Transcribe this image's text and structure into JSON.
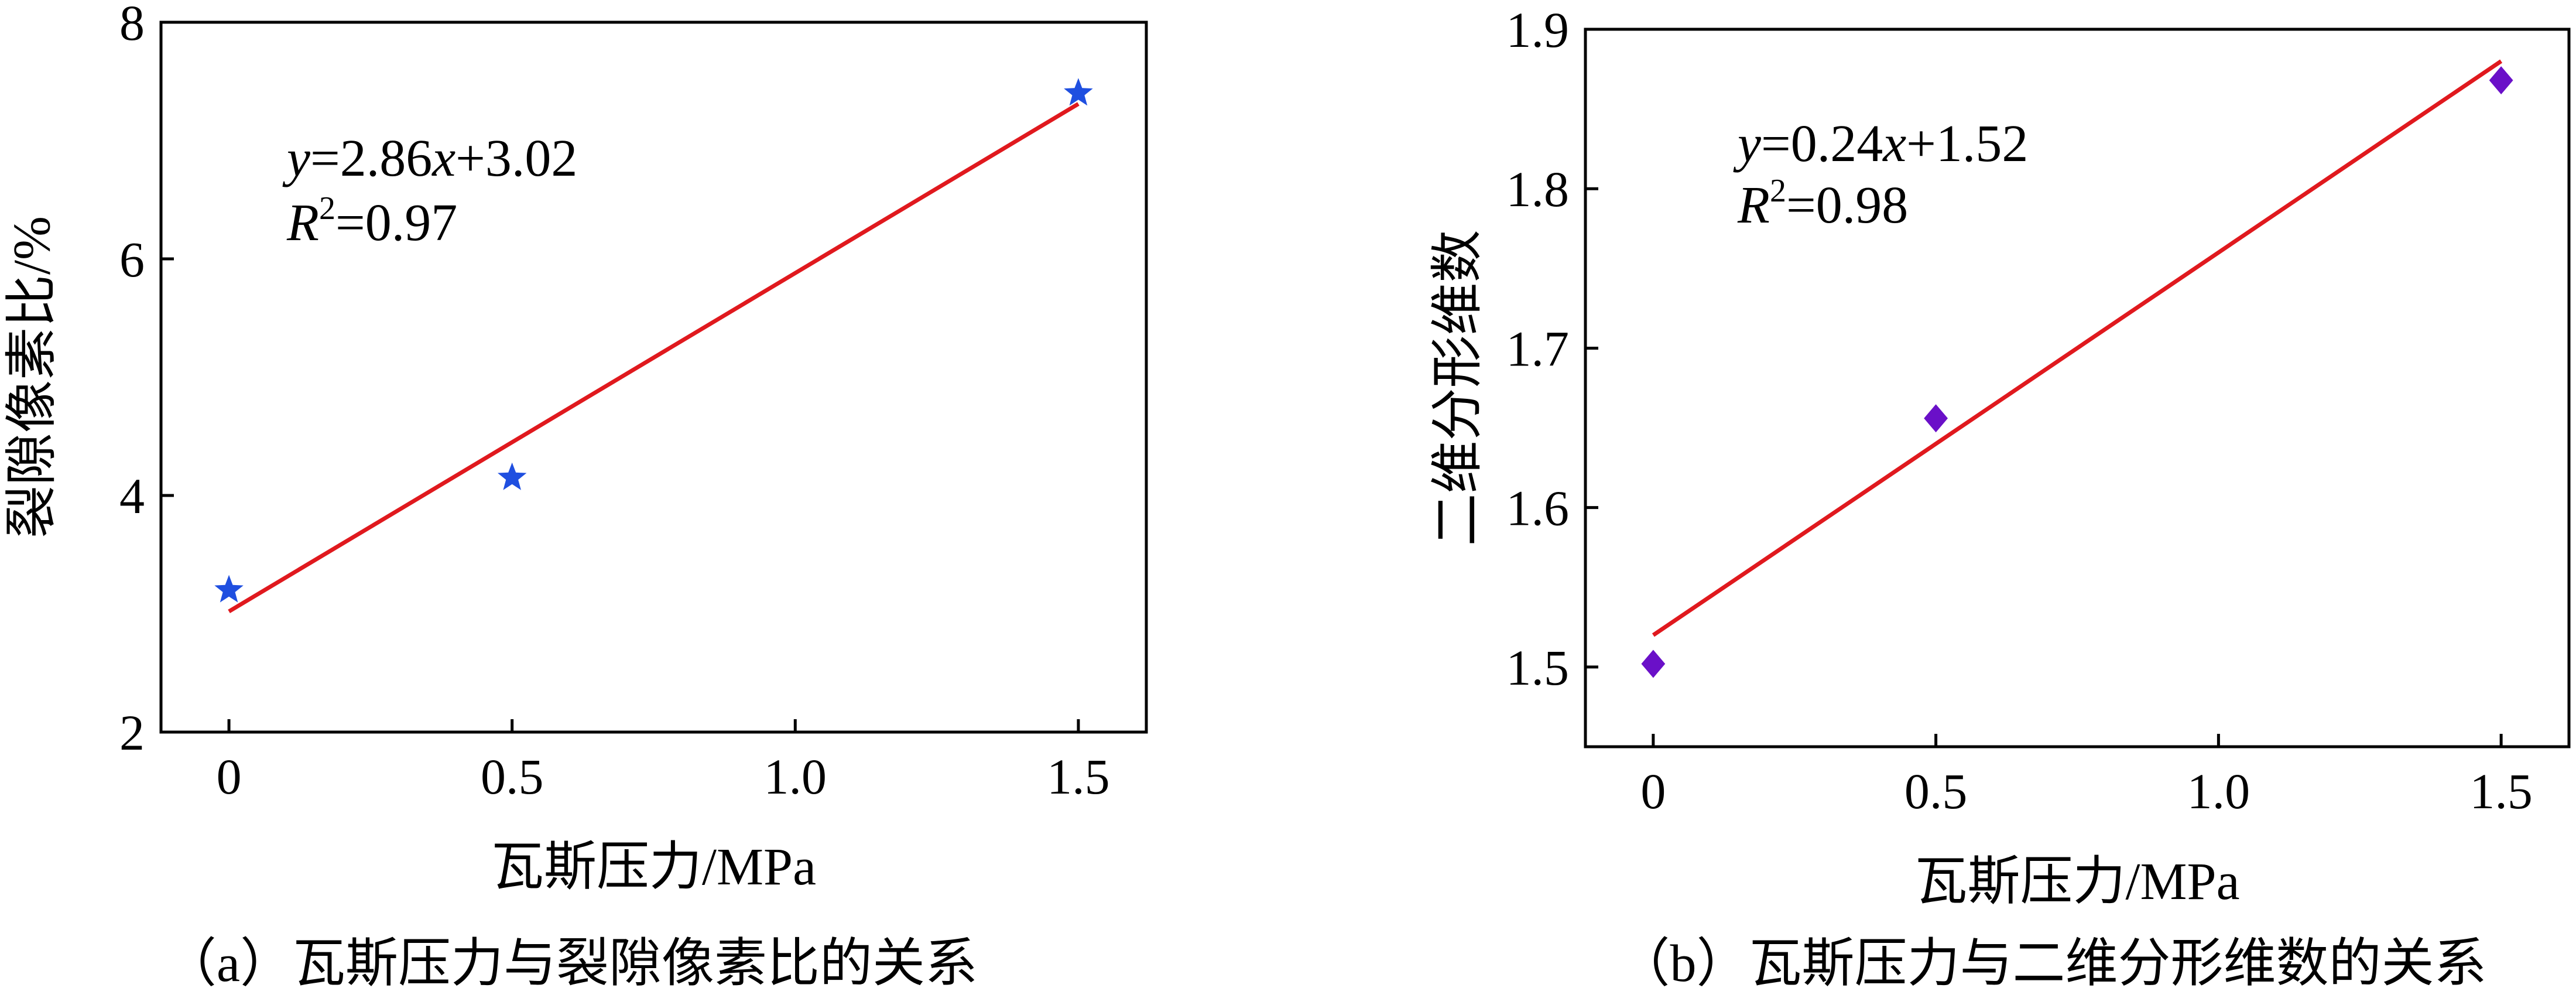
{
  "figure": {
    "captions": [
      "（a）瓦斯压力与裂隙像素比的关系",
      "（b）瓦斯压力与二维分形维数的关系"
    ]
  },
  "chart_data": [
    {
      "type": "scatter",
      "panel_label": "(a)",
      "caption": "（a）瓦斯压力与裂隙像素比的关系",
      "xlabel": "瓦斯压力/MPa",
      "ylabel": "裂隙像素比/%",
      "xlim": [
        -0.12,
        1.62
      ],
      "ylim": [
        2,
        8
      ],
      "xticks": [
        0,
        0.5,
        1.0,
        1.5
      ],
      "xtick_labels": [
        "0",
        "0.5",
        "1.0",
        "1.5"
      ],
      "yticks": [
        2,
        4,
        6,
        8
      ],
      "ytick_labels": [
        "2",
        "4",
        "6",
        "8"
      ],
      "series": [
        {
          "marker": "star",
          "color": "#1f4fe0",
          "x": [
            0,
            0.5,
            1.5
          ],
          "y": [
            3.2,
            4.15,
            7.4
          ]
        }
      ],
      "fit": {
        "color": "#e0191e",
        "slope": 2.86,
        "intercept": 3.02,
        "x_range": [
          0,
          1.5
        ],
        "equation": {
          "y": "y",
          "rest": "=2.86",
          "x": "x",
          "tail": "+3.02"
        },
        "r2": {
          "r": "R",
          "sup": "2",
          "rest": "=0.97"
        }
      },
      "grid": false,
      "frame": "box"
    },
    {
      "type": "scatter",
      "panel_label": "(b)",
      "caption": "（b）瓦斯压力与二维分形维数的关系",
      "xlabel": "瓦斯压力/MPa",
      "ylabel": "二维分形维数",
      "xlim": [
        -0.12,
        1.62
      ],
      "ylim": [
        1.45,
        1.9
      ],
      "xticks": [
        0,
        0.5,
        1.0,
        1.5
      ],
      "xtick_labels": [
        "0",
        "0.5",
        "1.0",
        "1.5"
      ],
      "yticks": [
        1.5,
        1.6,
        1.7,
        1.8,
        1.9
      ],
      "ytick_labels": [
        "1.5",
        "1.6",
        "1.7",
        "1.8",
        "1.9"
      ],
      "series": [
        {
          "marker": "diamond",
          "color": "#6a10c8",
          "x": [
            0,
            0.5,
            1.5
          ],
          "y": [
            1.502,
            1.656,
            1.868
          ]
        }
      ],
      "fit": {
        "color": "#e0191e",
        "slope": 0.24,
        "intercept": 1.52,
        "x_range": [
          0,
          1.5
        ],
        "equation": {
          "y": "y",
          "rest": "=0.24",
          "x": "x",
          "tail": "+1.52"
        },
        "r2": {
          "r": "R",
          "sup": "2",
          "rest": "=0.98"
        }
      },
      "grid": false,
      "frame": "box"
    }
  ]
}
